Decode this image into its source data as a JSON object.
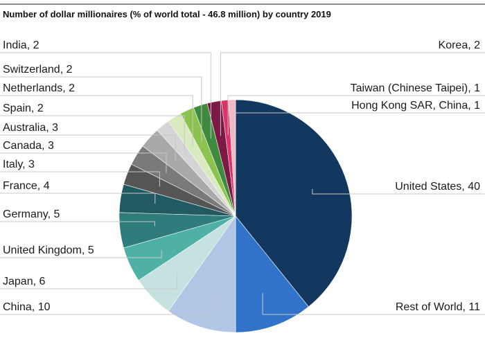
{
  "chart_data": {
    "type": "pie",
    "title": "Number of dollar millionaires (% of world total - 46.8 million) by country 2019",
    "unit": "% of world total",
    "slices": [
      {
        "label": "United States",
        "value": 40,
        "color": "#13385f",
        "display": "United States, 40"
      },
      {
        "label": "Rest of World",
        "value": 11,
        "color": "#3173c9",
        "display": "Rest of World, 11"
      },
      {
        "label": "China",
        "value": 10,
        "color": "#b0c6e4",
        "display": "China, 10"
      },
      {
        "label": "Japan",
        "value": 6,
        "color": "#c6e2e0",
        "display": "Japan, 6"
      },
      {
        "label": "United Kingdom",
        "value": 5,
        "color": "#4fb0a6",
        "display": "United Kingdom, 5"
      },
      {
        "label": "Germany",
        "value": 5,
        "color": "#2e7c7c",
        "display": "Germany, 5"
      },
      {
        "label": "France",
        "value": 4,
        "color": "#225a62",
        "display": "France, 4"
      },
      {
        "label": "Italy",
        "value": 3,
        "color": "#555555",
        "display": "Italy, 3"
      },
      {
        "label": "Canada",
        "value": 3,
        "color": "#7a7a7a",
        "display": "Canada, 3"
      },
      {
        "label": "Australia",
        "value": 3,
        "color": "#a9a9a9",
        "display": "Australia, 3"
      },
      {
        "label": "Spain",
        "value": 2,
        "color": "#d4d4d4",
        "display": "Spain, 2"
      },
      {
        "label": "Netherlands",
        "value": 2,
        "color": "#d9eac0",
        "display": "Netherlands, 2"
      },
      {
        "label": "Switzerland",
        "value": 2,
        "color": "#8cc34e",
        "display": "Switzerland, 2"
      },
      {
        "label": "India",
        "value": 2,
        "color": "#3f8a3f",
        "display": "India, 2"
      },
      {
        "label": "Korea",
        "value": 2,
        "color": "#7a1a45",
        "display": "Korea, 2"
      },
      {
        "label": "Taiwan (Chinese Taipei)",
        "value": 1,
        "color": "#d9356b",
        "display": "Taiwan (Chinese Taipei), 1"
      },
      {
        "label": "Hong Kong SAR, China",
        "value": 1,
        "color": "#f2b8c4",
        "display": "Hong Kong SAR, China, 1"
      }
    ]
  }
}
